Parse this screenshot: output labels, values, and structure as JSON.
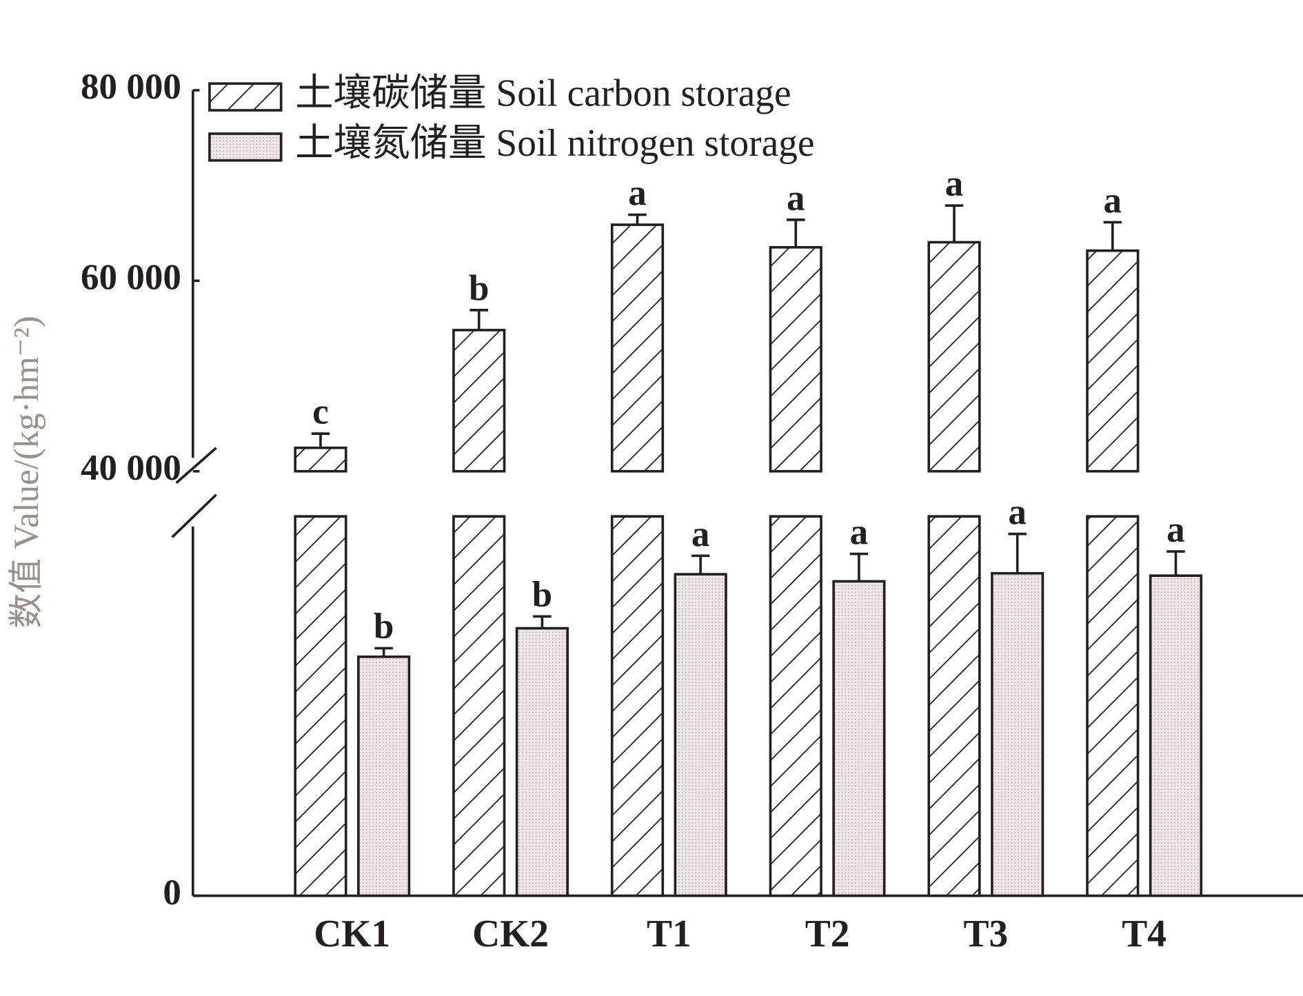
{
  "chart_data": {
    "type": "bar",
    "y_label": "数值 Value/(kg·hm⁻²)",
    "categories": [
      "CK1",
      "CK2",
      "T1",
      "T2",
      "T3",
      "T4"
    ],
    "axis_break": true,
    "y_segments": [
      {
        "ylim": [
          0,
          8000
        ],
        "yticks": [
          0
        ]
      },
      {
        "ylim": [
          40000,
          80000
        ],
        "yticks": [
          {
            "value": 40000,
            "label": "40 000"
          },
          {
            "value": 60000,
            "label": "60 000"
          },
          {
            "value": 80000,
            "label": "80 000"
          }
        ]
      }
    ],
    "series": [
      {
        "name": "土壤碳储量 Soil carbon storage",
        "pattern": "hatch",
        "color": "#231f20",
        "segment": 1,
        "values": [
          42460,
          54820,
          65880,
          63510,
          64040,
          63160
        ],
        "errors": [
          1490,
          2100,
          1050,
          2890,
          3860,
          2980
        ],
        "letters": [
          "c",
          "b",
          "a",
          "a",
          "a",
          "a"
        ]
      },
      {
        "name": "土壤氮储量 Soil nitrogen storage",
        "pattern": "dots",
        "color": "#231f20",
        "segment": 0,
        "values": [
          5040,
          5640,
          6780,
          6630,
          6800,
          6750
        ],
        "errors": [
          180,
          250,
          390,
          580,
          830,
          510
        ],
        "letters": [
          "b",
          "b",
          "a",
          "a",
          "a",
          "a"
        ]
      }
    ]
  }
}
